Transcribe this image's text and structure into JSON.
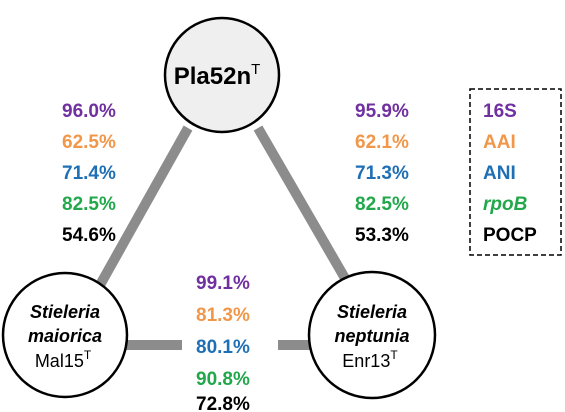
{
  "nodes": [
    {
      "strain": "Pla52n",
      "sup": "T"
    },
    {
      "genus": "Stieleria",
      "species": "maiorica",
      "strain": "Mal15",
      "sup": "T"
    },
    {
      "genus": "Stieleria",
      "species": "neptunia",
      "strain": "Enr13",
      "sup": "T"
    }
  ],
  "edges": [
    {
      "values": [
        "96.0%",
        "62.5%",
        "71.4%",
        "82.5%",
        "54.6%"
      ]
    },
    {
      "values": [
        "95.9%",
        "62.1%",
        "71.3%",
        "82.5%",
        "53.3%"
      ]
    },
    {
      "values": [
        "99.1%",
        "81.3%",
        "80.1%",
        "90.8%",
        "72.8%"
      ]
    }
  ],
  "legend": [
    "16S",
    "AAI",
    "ANI",
    "rpoB",
    "POCP"
  ]
}
